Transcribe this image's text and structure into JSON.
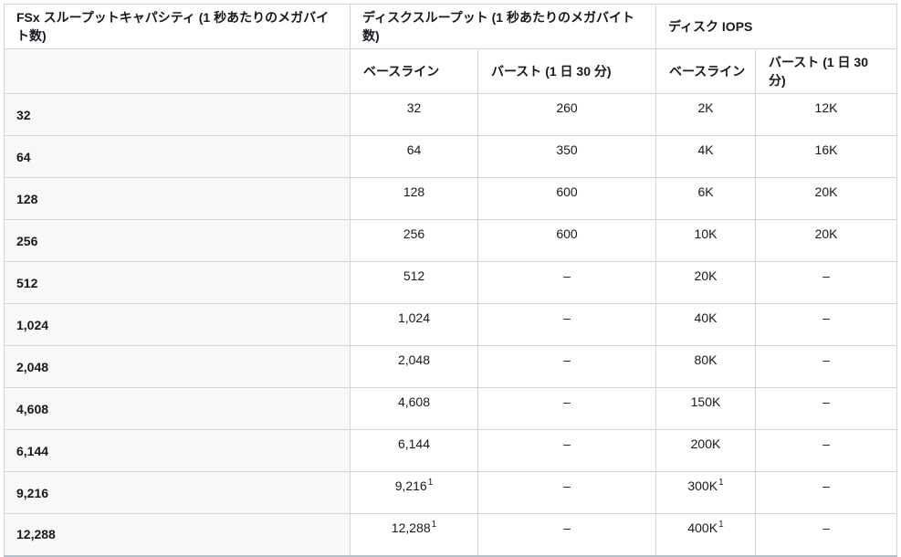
{
  "colors": {
    "border": "#d5d5d5",
    "bottom_border": "#b6bec6",
    "row_header_bg": "#f8f8f8",
    "text": "#16191f"
  },
  "table": {
    "header_groups": [
      {
        "label": "FSx スループットキャパシティ (1 秒あたりのメガバイト数)"
      },
      {
        "label": "ディスクスループット (1 秒あたりのメガバイト数)"
      },
      {
        "label": "ディスク IOPS"
      }
    ],
    "sub_headers": {
      "baseline": "ベースライン",
      "burst": "バースト (1 日 30 分)"
    },
    "rows": [
      {
        "capacity": "32",
        "disk_baseline": "32",
        "disk_baseline_sup": "",
        "disk_burst": "260",
        "iops_baseline": "2K",
        "iops_baseline_sup": "",
        "iops_burst": "12K"
      },
      {
        "capacity": "64",
        "disk_baseline": "64",
        "disk_baseline_sup": "",
        "disk_burst": "350",
        "iops_baseline": "4K",
        "iops_baseline_sup": "",
        "iops_burst": "16K"
      },
      {
        "capacity": "128",
        "disk_baseline": "128",
        "disk_baseline_sup": "",
        "disk_burst": "600",
        "iops_baseline": "6K",
        "iops_baseline_sup": "",
        "iops_burst": "20K"
      },
      {
        "capacity": "256",
        "disk_baseline": "256",
        "disk_baseline_sup": "",
        "disk_burst": "600",
        "iops_baseline": "10K",
        "iops_baseline_sup": "",
        "iops_burst": "20K"
      },
      {
        "capacity": "512",
        "disk_baseline": "512",
        "disk_baseline_sup": "",
        "disk_burst": "–",
        "iops_baseline": "20K",
        "iops_baseline_sup": "",
        "iops_burst": "–"
      },
      {
        "capacity": "1,024",
        "disk_baseline": "1,024",
        "disk_baseline_sup": "",
        "disk_burst": "–",
        "iops_baseline": "40K",
        "iops_baseline_sup": "",
        "iops_burst": "–"
      },
      {
        "capacity": "2,048",
        "disk_baseline": "2,048",
        "disk_baseline_sup": "",
        "disk_burst": "–",
        "iops_baseline": "80K",
        "iops_baseline_sup": "",
        "iops_burst": "–"
      },
      {
        "capacity": "4,608",
        "disk_baseline": "4,608",
        "disk_baseline_sup": "",
        "disk_burst": "–",
        "iops_baseline": "150K",
        "iops_baseline_sup": "",
        "iops_burst": "–"
      },
      {
        "capacity": "6,144",
        "disk_baseline": "6,144",
        "disk_baseline_sup": "",
        "disk_burst": "–",
        "iops_baseline": "200K",
        "iops_baseline_sup": "",
        "iops_burst": "–"
      },
      {
        "capacity": "9,216",
        "disk_baseline": "9,216",
        "disk_baseline_sup": "1",
        "disk_burst": "–",
        "iops_baseline": "300K",
        "iops_baseline_sup": "1",
        "iops_burst": "–"
      },
      {
        "capacity": "12,288",
        "disk_baseline": "12,288",
        "disk_baseline_sup": "1",
        "disk_burst": "–",
        "iops_baseline": "400K",
        "iops_baseline_sup": "1",
        "iops_burst": "–"
      }
    ]
  }
}
